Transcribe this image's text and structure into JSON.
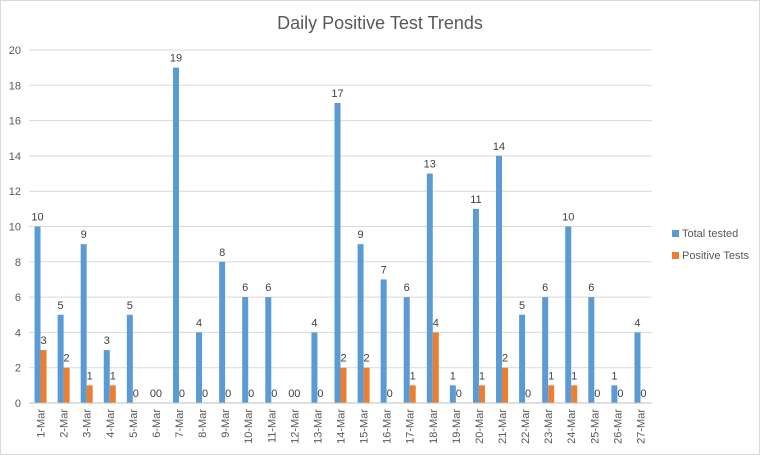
{
  "chart_data": {
    "type": "bar",
    "title": "Daily Positive Test Trends",
    "xlabel": "",
    "ylabel": "",
    "ylim": [
      0,
      20
    ],
    "yticks": [
      0,
      2,
      4,
      6,
      8,
      10,
      12,
      14,
      16,
      18,
      20
    ],
    "grid": true,
    "legend_position": "right",
    "categories": [
      "1-Mar",
      "2-Mar",
      "3-Mar",
      "4-Mar",
      "5-Mar",
      "6-Mar",
      "7-Mar",
      "8-Mar",
      "9-Mar",
      "10-Mar",
      "11-Mar",
      "12-Mar",
      "13-Mar",
      "14-Mar",
      "15-Mar",
      "16-Mar",
      "17-Mar",
      "18-Mar",
      "19-Mar",
      "20-Mar",
      "21-Mar",
      "22-Mar",
      "23-Mar",
      "24-Mar",
      "25-Mar",
      "26-Mar",
      "27-Mar"
    ],
    "series": [
      {
        "name": "Total tested",
        "color": "#5b9bd5",
        "values": [
          10,
          5,
          9,
          3,
          5,
          0,
          19,
          4,
          8,
          6,
          6,
          0,
          4,
          17,
          9,
          7,
          6,
          13,
          1,
          11,
          14,
          5,
          6,
          10,
          6,
          1,
          4
        ]
      },
      {
        "name": "Positive Tests",
        "color": "#ed7d31",
        "values": [
          3,
          2,
          1,
          1,
          0,
          0,
          0,
          0,
          0,
          0,
          0,
          0,
          0,
          2,
          2,
          0,
          1,
          4,
          0,
          1,
          2,
          0,
          1,
          1,
          0,
          0,
          0
        ]
      }
    ]
  }
}
